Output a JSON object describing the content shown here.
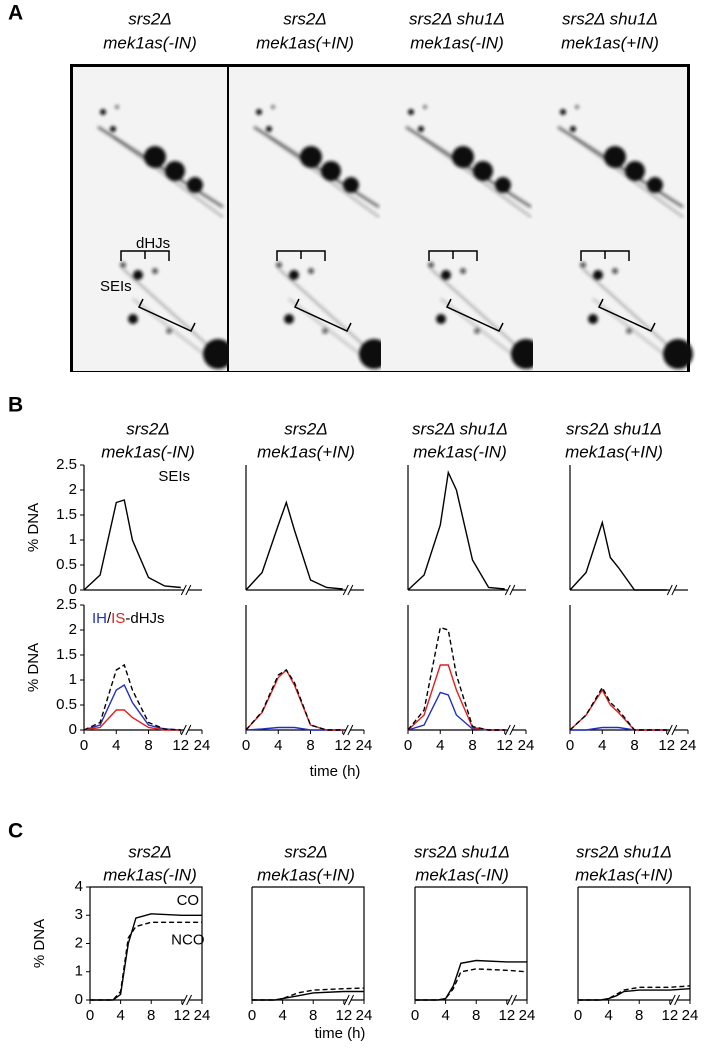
{
  "figure": {
    "A": {
      "label": "A",
      "columns": [
        [
          "srs2Δ",
          "mek1as(-IN)"
        ],
        [
          "srs2Δ",
          "mek1as(+IN)"
        ],
        [
          "srs2Δ shu1Δ",
          "mek1as(-IN)"
        ],
        [
          "srs2Δ shu1Δ",
          "mek1as(+IN)"
        ]
      ],
      "annotations": [
        "dHJs",
        "SEIs"
      ]
    },
    "B": {
      "label": "B",
      "columns": [
        [
          "srs2Δ",
          "mek1as(-IN)"
        ],
        [
          "srs2Δ",
          "mek1as(+IN)"
        ],
        [
          "srs2Δ shu1Δ",
          "mek1as(-IN)"
        ],
        [
          "srs2Δ shu1Δ",
          "mek1as(+IN)"
        ]
      ],
      "xlabel": "time (h)"
    },
    "C": {
      "label": "C",
      "columns": [
        [
          "srs2Δ",
          "mek1as(-IN)"
        ],
        [
          "srs2Δ",
          "mek1as(+IN)"
        ],
        [
          "srs2Δ shu1Δ",
          "mek1as(-IN)"
        ],
        [
          "srs2Δ shu1Δ",
          "mek1as(+IN)"
        ]
      ],
      "xlabel": "time (h)"
    }
  },
  "chart_data": [
    {
      "type": "line",
      "ylabel": "% DNA",
      "annotation": "SEIs",
      "x_break": true,
      "xlim": [
        0,
        24
      ],
      "ylim": [
        0,
        2.5
      ],
      "yticks": [
        0,
        0.5,
        1,
        1.5,
        2,
        2.5
      ],
      "x": [
        0,
        2,
        4,
        5,
        6,
        8,
        10,
        12
      ],
      "series": [
        {
          "color": "#000000",
          "values": [
            0,
            0.3,
            1.75,
            1.8,
            1.0,
            0.25,
            0.08,
            0.05
          ]
        }
      ]
    },
    {
      "type": "line",
      "x_break": true,
      "xlim": [
        0,
        24
      ],
      "ylim": [
        0,
        2.5
      ],
      "x": [
        0,
        2,
        4,
        5,
        6,
        8,
        10,
        12
      ],
      "series": [
        {
          "color": "#000000",
          "values": [
            0,
            0.35,
            1.3,
            1.75,
            1.2,
            0.2,
            0.05,
            0.02
          ]
        }
      ]
    },
    {
      "type": "line",
      "x_break": true,
      "xlim": [
        0,
        24
      ],
      "ylim": [
        0,
        2.5
      ],
      "x": [
        0,
        2,
        4,
        5,
        6,
        8,
        10,
        12
      ],
      "series": [
        {
          "color": "#000000",
          "values": [
            0,
            0.3,
            1.3,
            2.35,
            2.0,
            0.6,
            0.05,
            0.02
          ]
        }
      ]
    },
    {
      "type": "line",
      "x_break": true,
      "xlim": [
        0,
        24
      ],
      "ylim": [
        0,
        2.5
      ],
      "x": [
        0,
        2,
        4,
        5,
        6,
        8,
        10,
        12
      ],
      "series": [
        {
          "color": "#000000",
          "values": [
            0,
            0.35,
            1.35,
            0.65,
            0.45,
            0,
            0,
            0
          ]
        }
      ]
    },
    {
      "type": "line",
      "ylabel": "% DNA",
      "legend": "top-left",
      "legend_joiner": "/",
      "legend_suffix": "-dHJs",
      "x_break": true,
      "xlim": [
        0,
        24
      ],
      "ylim": [
        0,
        2.5
      ],
      "yticks": [
        0,
        0.5,
        1,
        1.5,
        2,
        2.5
      ],
      "xticks": [
        0,
        4,
        8,
        12,
        24
      ],
      "x": [
        0,
        2,
        4,
        5,
        6,
        8,
        10,
        12
      ],
      "series": [
        {
          "name": "IH",
          "color": "#2030c0",
          "values": [
            0,
            0.1,
            0.8,
            0.9,
            0.55,
            0.1,
            0.02,
            0
          ]
        },
        {
          "name": "IS",
          "color": "#e02020",
          "values": [
            0,
            0.05,
            0.4,
            0.4,
            0.25,
            0.05,
            0,
            0
          ]
        },
        {
          "color": "#000000",
          "dash": true,
          "values": [
            0,
            0.15,
            1.2,
            1.3,
            0.8,
            0.15,
            0.02,
            0
          ]
        }
      ]
    },
    {
      "type": "line",
      "x_break": true,
      "xlim": [
        0,
        24
      ],
      "ylim": [
        0,
        2.5
      ],
      "xticks": [
        0,
        4,
        8,
        12,
        24
      ],
      "x": [
        0,
        2,
        4,
        5,
        6,
        8,
        10,
        12
      ],
      "series": [
        {
          "color": "#2030c0",
          "values": [
            0,
            0.02,
            0.05,
            0.05,
            0.05,
            0,
            0,
            0
          ]
        },
        {
          "color": "#e02020",
          "values": [
            0,
            0.35,
            1.05,
            1.2,
            0.9,
            0.1,
            0,
            0
          ]
        },
        {
          "color": "#000000",
          "dash": true,
          "values": [
            0,
            0.37,
            1.1,
            1.2,
            0.95,
            0.1,
            0,
            0
          ]
        }
      ]
    },
    {
      "type": "line",
      "x_break": true,
      "xlim": [
        0,
        24
      ],
      "ylim": [
        0,
        2.5
      ],
      "xticks": [
        0,
        4,
        8,
        12,
        24
      ],
      "x": [
        0,
        2,
        4,
        5,
        6,
        8,
        10,
        12
      ],
      "series": [
        {
          "color": "#2030c0",
          "values": [
            0,
            0.1,
            0.75,
            0.7,
            0.3,
            0.02,
            0,
            0
          ]
        },
        {
          "color": "#e02020",
          "values": [
            0,
            0.3,
            1.3,
            1.3,
            0.8,
            0.05,
            0,
            0
          ]
        },
        {
          "color": "#000000",
          "dash": true,
          "values": [
            0,
            0.4,
            2.05,
            2.0,
            1.1,
            0.07,
            0,
            0
          ]
        }
      ]
    },
    {
      "type": "line",
      "x_break": true,
      "xlim": [
        0,
        24
      ],
      "ylim": [
        0,
        2.5
      ],
      "xticks": [
        0,
        4,
        8,
        12,
        24
      ],
      "x": [
        0,
        2,
        4,
        5,
        6,
        8,
        10,
        12
      ],
      "series": [
        {
          "color": "#2030c0",
          "values": [
            0,
            0,
            0.05,
            0.05,
            0.05,
            0,
            0,
            0
          ]
        },
        {
          "color": "#e02020",
          "values": [
            0,
            0.3,
            0.8,
            0.5,
            0.35,
            0,
            0,
            0
          ]
        },
        {
          "color": "#000000",
          "dash": true,
          "values": [
            0,
            0.3,
            0.85,
            0.55,
            0.4,
            0,
            0,
            0
          ]
        }
      ]
    },
    {
      "type": "line",
      "ylabel": "% DNA",
      "legend": "inline",
      "frame": true,
      "x_break": true,
      "xlim": [
        0,
        24
      ],
      "ylim": [
        0,
        4
      ],
      "yticks": [
        0,
        1,
        2,
        3,
        4
      ],
      "xticks": [
        0,
        4,
        8,
        12,
        24
      ],
      "x": [
        0,
        3,
        4,
        5,
        6,
        8,
        12,
        24
      ],
      "series": [
        {
          "name": "CO",
          "color": "#000000",
          "values": [
            0,
            0,
            0.2,
            2.0,
            2.9,
            3.05,
            3.0,
            3.0
          ]
        },
        {
          "name": "NCO",
          "color": "#000000",
          "dash": true,
          "values": [
            0,
            0,
            0.3,
            2.2,
            2.6,
            2.75,
            2.75,
            2.75
          ]
        }
      ]
    },
    {
      "type": "line",
      "frame": true,
      "x_break": true,
      "xlim": [
        0,
        24
      ],
      "ylim": [
        0,
        4
      ],
      "xticks": [
        0,
        4,
        8,
        12,
        24
      ],
      "x": [
        0,
        3,
        4,
        5,
        6,
        8,
        12,
        24
      ],
      "series": [
        {
          "color": "#000000",
          "values": [
            0,
            0,
            0.05,
            0.1,
            0.15,
            0.25,
            0.3,
            0.3
          ]
        },
        {
          "color": "#000000",
          "dash": true,
          "values": [
            0,
            0,
            0.05,
            0.15,
            0.25,
            0.35,
            0.4,
            0.42
          ]
        }
      ]
    },
    {
      "type": "line",
      "frame": true,
      "x_break": true,
      "xlim": [
        0,
        24
      ],
      "ylim": [
        0,
        4
      ],
      "xticks": [
        0,
        4,
        8,
        12,
        24
      ],
      "x": [
        0,
        3,
        4,
        5,
        6,
        8,
        12,
        24
      ],
      "series": [
        {
          "color": "#000000",
          "values": [
            0,
            0,
            0.05,
            0.5,
            1.3,
            1.4,
            1.35,
            1.35
          ]
        },
        {
          "color": "#000000",
          "dash": true,
          "values": [
            0,
            0,
            0.05,
            0.4,
            1.0,
            1.1,
            1.05,
            1.0
          ]
        }
      ]
    },
    {
      "type": "line",
      "frame": true,
      "x_break": true,
      "xlim": [
        0,
        24
      ],
      "ylim": [
        0,
        4
      ],
      "xticks": [
        0,
        4,
        8,
        12,
        24
      ],
      "x": [
        0,
        3,
        4,
        5,
        6,
        8,
        12,
        24
      ],
      "series": [
        {
          "color": "#000000",
          "values": [
            0,
            0,
            0.05,
            0.15,
            0.3,
            0.35,
            0.35,
            0.4
          ]
        },
        {
          "color": "#000000",
          "dash": true,
          "values": [
            0,
            0,
            0.05,
            0.2,
            0.35,
            0.45,
            0.45,
            0.5
          ]
        }
      ]
    }
  ]
}
